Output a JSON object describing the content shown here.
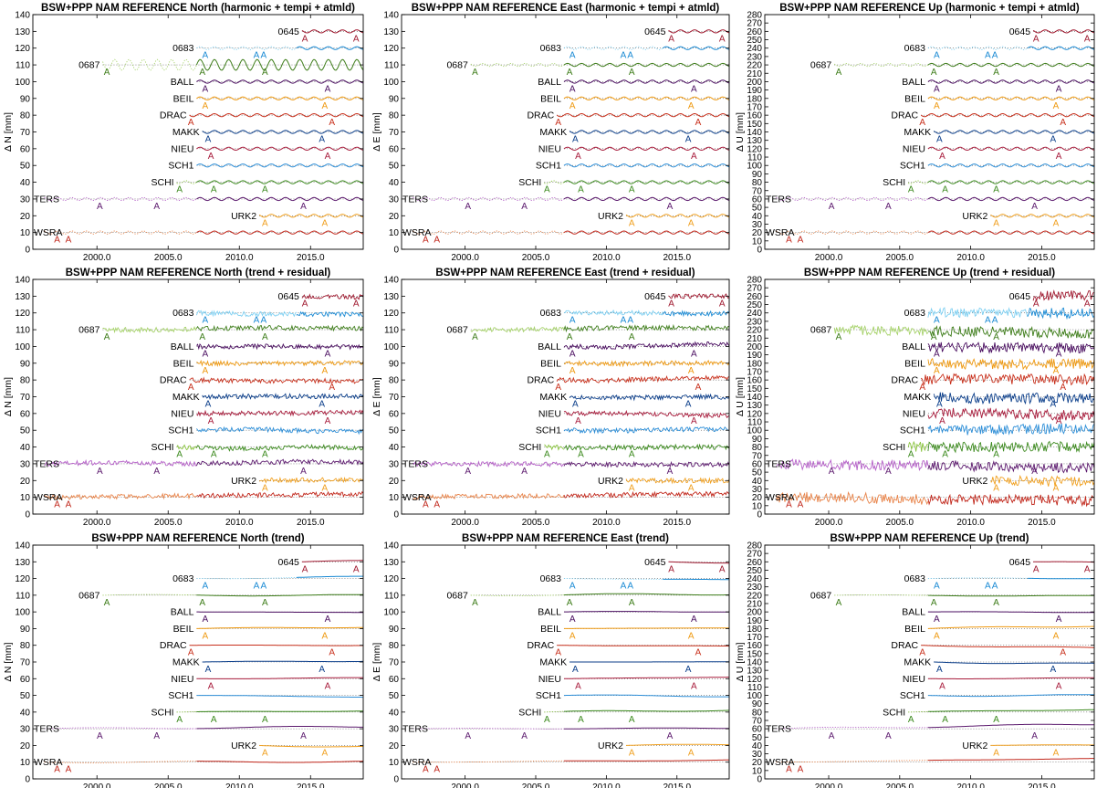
{
  "chart_data": [
    {
      "type": "line",
      "title": "BSW+PPP NAM REFERENCE North  (harmonic + tempi + atmld)",
      "ylabel": "Δ N [mm]",
      "xlim": [
        1995.5,
        2018.7
      ],
      "ylim": [
        0,
        140
      ],
      "yticks": [
        0,
        10,
        20,
        30,
        40,
        50,
        60,
        70,
        80,
        90,
        100,
        110,
        120,
        130,
        140
      ],
      "xticks": [
        "2000.0",
        "2005.0",
        "2010.0",
        "2015.0"
      ],
      "grid": false,
      "series": [
        {
          "name": "WSRA",
          "offset": 10
        },
        {
          "name": "TERS",
          "offset": 30
        },
        {
          "name": "URK2",
          "offset": 20
        },
        {
          "name": "SCHI",
          "offset": 40
        },
        {
          "name": "SCH1",
          "offset": 50
        },
        {
          "name": "NIEU",
          "offset": 60
        },
        {
          "name": "MAKK",
          "offset": 70
        },
        {
          "name": "DRAC",
          "offset": 80
        },
        {
          "name": "BEIL",
          "offset": 90
        },
        {
          "name": "BALL",
          "offset": 100
        },
        {
          "name": "0687",
          "offset": 110
        },
        {
          "name": "0683",
          "offset": 120
        },
        {
          "name": "0645",
          "offset": 130
        }
      ]
    },
    {
      "type": "line",
      "title": "BSW+PPP NAM REFERENCE East  (harmonic + tempi + atmld)",
      "ylabel": "Δ E [mm]",
      "xlim": [
        1995.5,
        2018.7
      ],
      "ylim": [
        0,
        140
      ],
      "yticks": [
        0,
        10,
        20,
        30,
        40,
        50,
        60,
        70,
        80,
        90,
        100,
        110,
        120,
        130,
        140
      ],
      "xticks": [
        "2000.0",
        "2005.0",
        "2010.0",
        "2015.0"
      ],
      "grid": false,
      "series": [
        {
          "name": "WSRA",
          "offset": 10
        },
        {
          "name": "TERS",
          "offset": 30
        },
        {
          "name": "URK2",
          "offset": 20
        },
        {
          "name": "SCHI",
          "offset": 40
        },
        {
          "name": "SCH1",
          "offset": 50
        },
        {
          "name": "NIEU",
          "offset": 60
        },
        {
          "name": "MAKK",
          "offset": 70
        },
        {
          "name": "DRAC",
          "offset": 80
        },
        {
          "name": "BEIL",
          "offset": 90
        },
        {
          "name": "BALL",
          "offset": 100
        },
        {
          "name": "0687",
          "offset": 110
        },
        {
          "name": "0683",
          "offset": 120
        },
        {
          "name": "0645",
          "offset": 130
        }
      ]
    },
    {
      "type": "line",
      "title": "BSW+PPP NAM REFERENCE Up  (harmonic + tempi + atmld)",
      "ylabel": "Δ U [mm]",
      "xlim": [
        1995.5,
        2018.7
      ],
      "ylim": [
        0,
        280
      ],
      "yticks": [
        0,
        10,
        20,
        30,
        40,
        50,
        60,
        70,
        80,
        90,
        100,
        110,
        120,
        130,
        140,
        150,
        160,
        170,
        180,
        190,
        200,
        210,
        220,
        230,
        240,
        250,
        260,
        270,
        280
      ],
      "xticks": [
        "2000.0",
        "2005.0",
        "2010.0",
        "2015.0"
      ],
      "grid": false,
      "series": [
        {
          "name": "WSRA",
          "offset": 20
        },
        {
          "name": "TERS",
          "offset": 60
        },
        {
          "name": "URK2",
          "offset": 40
        },
        {
          "name": "SCHI",
          "offset": 80
        },
        {
          "name": "SCH1",
          "offset": 100
        },
        {
          "name": "NIEU",
          "offset": 120
        },
        {
          "name": "MAKK",
          "offset": 140
        },
        {
          "name": "DRAC",
          "offset": 160
        },
        {
          "name": "BEIL",
          "offset": 180
        },
        {
          "name": "BALL",
          "offset": 200
        },
        {
          "name": "0687",
          "offset": 220
        },
        {
          "name": "0683",
          "offset": 240
        },
        {
          "name": "0645",
          "offset": 260
        }
      ]
    },
    {
      "type": "line",
      "title": "BSW+PPP NAM REFERENCE North  (trend + residual)",
      "ylabel": "Δ N [mm]",
      "xlim": [
        1995.5,
        2018.7
      ],
      "ylim": [
        0,
        140
      ],
      "yticks": [
        0,
        10,
        20,
        30,
        40,
        50,
        60,
        70,
        80,
        90,
        100,
        110,
        120,
        130,
        140
      ],
      "xticks": [
        "2000.0",
        "2005.0",
        "2010.0",
        "2015.0"
      ],
      "grid": false,
      "series": [
        {
          "name": "WSRA",
          "offset": 10
        },
        {
          "name": "TERS",
          "offset": 30
        },
        {
          "name": "URK2",
          "offset": 20
        },
        {
          "name": "SCHI",
          "offset": 40
        },
        {
          "name": "SCH1",
          "offset": 50
        },
        {
          "name": "NIEU",
          "offset": 60
        },
        {
          "name": "MAKK",
          "offset": 70
        },
        {
          "name": "DRAC",
          "offset": 80
        },
        {
          "name": "BEIL",
          "offset": 90
        },
        {
          "name": "BALL",
          "offset": 100
        },
        {
          "name": "0687",
          "offset": 110
        },
        {
          "name": "0683",
          "offset": 120
        },
        {
          "name": "0645",
          "offset": 130
        }
      ]
    },
    {
      "type": "line",
      "title": "BSW+PPP NAM REFERENCE East  (trend + residual)",
      "ylabel": "Δ E [mm]",
      "xlim": [
        1995.5,
        2018.7
      ],
      "ylim": [
        0,
        140
      ],
      "yticks": [
        0,
        10,
        20,
        30,
        40,
        50,
        60,
        70,
        80,
        90,
        100,
        110,
        120,
        130,
        140
      ],
      "xticks": [
        "2000.0",
        "2005.0",
        "2010.0",
        "2015.0"
      ],
      "grid": false,
      "series": [
        {
          "name": "WSRA",
          "offset": 10
        },
        {
          "name": "TERS",
          "offset": 30
        },
        {
          "name": "URK2",
          "offset": 20
        },
        {
          "name": "SCHI",
          "offset": 40
        },
        {
          "name": "SCH1",
          "offset": 50
        },
        {
          "name": "NIEU",
          "offset": 60
        },
        {
          "name": "MAKK",
          "offset": 70
        },
        {
          "name": "DRAC",
          "offset": 80
        },
        {
          "name": "BEIL",
          "offset": 90
        },
        {
          "name": "BALL",
          "offset": 100
        },
        {
          "name": "0687",
          "offset": 110
        },
        {
          "name": "0683",
          "offset": 120
        },
        {
          "name": "0645",
          "offset": 130
        }
      ]
    },
    {
      "type": "line",
      "title": "BSW+PPP NAM REFERENCE Up  (trend + residual)",
      "ylabel": "Δ U [mm]",
      "xlim": [
        1995.5,
        2018.7
      ],
      "ylim": [
        0,
        280
      ],
      "yticks": [
        0,
        10,
        20,
        30,
        40,
        50,
        60,
        70,
        80,
        90,
        100,
        110,
        120,
        130,
        140,
        150,
        160,
        170,
        180,
        190,
        200,
        210,
        220,
        230,
        240,
        250,
        260,
        270,
        280
      ],
      "xticks": [
        "2000.0",
        "2005.0",
        "2010.0",
        "2015.0"
      ],
      "grid": false,
      "series": [
        {
          "name": "WSRA",
          "offset": 20
        },
        {
          "name": "TERS",
          "offset": 60
        },
        {
          "name": "URK2",
          "offset": 40
        },
        {
          "name": "SCHI",
          "offset": 80
        },
        {
          "name": "SCH1",
          "offset": 100
        },
        {
          "name": "NIEU",
          "offset": 120
        },
        {
          "name": "MAKK",
          "offset": 140
        },
        {
          "name": "DRAC",
          "offset": 160
        },
        {
          "name": "BEIL",
          "offset": 180
        },
        {
          "name": "BALL",
          "offset": 200
        },
        {
          "name": "0687",
          "offset": 220
        },
        {
          "name": "0683",
          "offset": 240
        },
        {
          "name": "0645",
          "offset": 260
        }
      ]
    },
    {
      "type": "line",
      "title": "BSW+PPP NAM REFERENCE North  (trend)",
      "ylabel": "Δ N [mm]",
      "xlim": [
        1995.5,
        2018.7
      ],
      "ylim": [
        0,
        140
      ],
      "yticks": [
        0,
        10,
        20,
        30,
        40,
        50,
        60,
        70,
        80,
        90,
        100,
        110,
        120,
        130,
        140
      ],
      "xticks": [
        "2000.0",
        "2005.0",
        "2010.0",
        "2015.0"
      ],
      "grid": false,
      "series": [
        {
          "name": "WSRA",
          "offset": 10
        },
        {
          "name": "TERS",
          "offset": 30
        },
        {
          "name": "URK2",
          "offset": 20
        },
        {
          "name": "SCHI",
          "offset": 40
        },
        {
          "name": "SCH1",
          "offset": 50
        },
        {
          "name": "NIEU",
          "offset": 60
        },
        {
          "name": "MAKK",
          "offset": 70
        },
        {
          "name": "DRAC",
          "offset": 80
        },
        {
          "name": "BEIL",
          "offset": 90
        },
        {
          "name": "BALL",
          "offset": 100
        },
        {
          "name": "0687",
          "offset": 110
        },
        {
          "name": "0683",
          "offset": 120
        },
        {
          "name": "0645",
          "offset": 130
        }
      ]
    },
    {
      "type": "line",
      "title": "BSW+PPP NAM REFERENCE East  (trend)",
      "ylabel": "Δ E [mm]",
      "xlim": [
        1995.5,
        2018.7
      ],
      "ylim": [
        0,
        140
      ],
      "yticks": [
        0,
        10,
        20,
        30,
        40,
        50,
        60,
        70,
        80,
        90,
        100,
        110,
        120,
        130,
        140
      ],
      "xticks": [
        "2000.0",
        "2005.0",
        "2010.0",
        "2015.0"
      ],
      "grid": false,
      "series": [
        {
          "name": "WSRA",
          "offset": 10
        },
        {
          "name": "TERS",
          "offset": 30
        },
        {
          "name": "URK2",
          "offset": 20
        },
        {
          "name": "SCHI",
          "offset": 40
        },
        {
          "name": "SCH1",
          "offset": 50
        },
        {
          "name": "NIEU",
          "offset": 60
        },
        {
          "name": "MAKK",
          "offset": 70
        },
        {
          "name": "DRAC",
          "offset": 80
        },
        {
          "name": "BEIL",
          "offset": 90
        },
        {
          "name": "BALL",
          "offset": 100
        },
        {
          "name": "0687",
          "offset": 110
        },
        {
          "name": "0683",
          "offset": 120
        },
        {
          "name": "0645",
          "offset": 130
        }
      ]
    },
    {
      "type": "line",
      "title": "BSW+PPP NAM REFERENCE Up  (trend)",
      "ylabel": "Δ U [mm]",
      "xlim": [
        1995.5,
        2018.7
      ],
      "ylim": [
        0,
        280
      ],
      "yticks": [
        0,
        10,
        20,
        30,
        40,
        50,
        60,
        70,
        80,
        90,
        100,
        110,
        120,
        130,
        140,
        150,
        160,
        170,
        180,
        190,
        200,
        210,
        220,
        230,
        240,
        250,
        260,
        270,
        280
      ],
      "xticks": [
        "2000.0",
        "2005.0",
        "2010.0",
        "2015.0"
      ],
      "grid": false,
      "series": [
        {
          "name": "WSRA",
          "offset": 20
        },
        {
          "name": "TERS",
          "offset": 60
        },
        {
          "name": "URK2",
          "offset": 40
        },
        {
          "name": "SCHI",
          "offset": 80
        },
        {
          "name": "SCH1",
          "offset": 100
        },
        {
          "name": "NIEU",
          "offset": 120
        },
        {
          "name": "MAKK",
          "offset": 140
        },
        {
          "name": "DRAC",
          "offset": 160
        },
        {
          "name": "BEIL",
          "offset": 180
        },
        {
          "name": "BALL",
          "offset": 200
        },
        {
          "name": "0687",
          "offset": 220
        },
        {
          "name": "0683",
          "offset": 240
        },
        {
          "name": "0645",
          "offset": 260
        }
      ]
    }
  ],
  "stations": {
    "WSRA": {
      "start": 1996.3,
      "mid": 2007.0,
      "end": 2018.7,
      "color": "#e8844a",
      "color2": "#c1271b",
      "events": [
        1997.2,
        1998.0
      ]
    },
    "TERS": {
      "start": 1996.3,
      "mid": 2007.0,
      "end": 2018.7,
      "color": "#b560c8",
      "color2": "#5c1a6e",
      "events": [
        2000.2,
        2004.2,
        2014.5
      ]
    },
    "URK2": {
      "start": 2011.4,
      "mid": 2011.4,
      "end": 2018.7,
      "color": "#f0a020",
      "color2": "#f0a020",
      "events": [
        2011.8,
        2016.0
      ]
    },
    "SCHI": {
      "start": 2005.6,
      "mid": 2007.0,
      "end": 2018.7,
      "color": "#8ac43f",
      "color2": "#3c8a1e",
      "events": [
        2005.8,
        2008.2,
        2011.8
      ]
    },
    "SCH1": {
      "start": 2007.0,
      "mid": 2007.0,
      "end": 2018.7,
      "color": "#2e8fd8",
      "color2": "#2e8fd8",
      "events": []
    },
    "NIEU": {
      "start": 2007.0,
      "mid": 2007.0,
      "end": 2018.7,
      "color": "#a81c3c",
      "color2": "#a81c3c",
      "events": [
        2008.0,
        2016.2
      ]
    },
    "MAKK": {
      "start": 2007.4,
      "mid": 2007.4,
      "end": 2018.7,
      "color": "#1f6fd0",
      "color2": "#0b3e8a",
      "events": [
        2007.8,
        2015.8
      ]
    },
    "DRAC": {
      "start": 2006.5,
      "mid": 2006.5,
      "end": 2018.7,
      "color": "#c8301c",
      "color2": "#c8301c",
      "events": [
        2006.6,
        2016.5
      ]
    },
    "BEIL": {
      "start": 2007.0,
      "mid": 2007.0,
      "end": 2018.7,
      "color": "#ef9a12",
      "color2": "#ef9a12",
      "events": [
        2007.6,
        2016.0
      ]
    },
    "BALL": {
      "start": 2007.0,
      "mid": 2007.0,
      "end": 2018.7,
      "color": "#7a2a8c",
      "color2": "#4a0e60",
      "events": [
        2007.6,
        2016.2
      ]
    },
    "0687": {
      "start": 2000.4,
      "mid": 2007.0,
      "end": 2018.7,
      "color": "#a6d26a",
      "color2": "#3e7d1a",
      "events": [
        2000.7,
        2007.4,
        2011.8
      ]
    },
    "0683": {
      "start": 2007.0,
      "mid": 2014.0,
      "end": 2018.7,
      "color": "#7fd0f2",
      "color2": "#1a8ad4",
      "events": [
        2007.6,
        2011.2,
        2011.7
      ]
    },
    "0645": {
      "start": 2014.4,
      "mid": 2014.4,
      "end": 2018.7,
      "color": "#a01a30",
      "color2": "#a01a30",
      "events": [
        2014.6,
        2018.2
      ]
    }
  },
  "event_marker": "A"
}
